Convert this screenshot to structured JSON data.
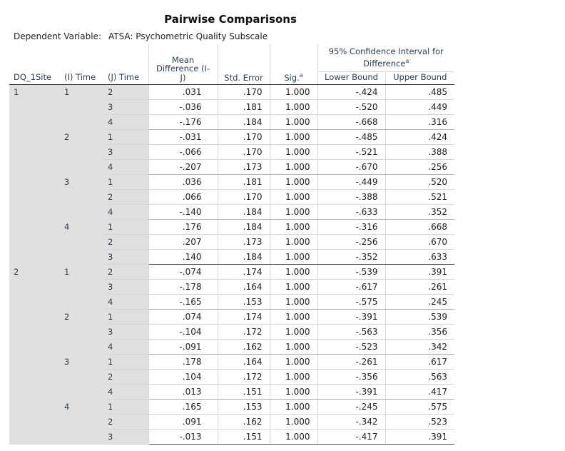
{
  "title": "Pairwise Comparisons",
  "dependent_variable": {
    "label": "Dependent Variable:",
    "value": "ATSA: Psychometric Quality Subscale"
  },
  "columns": {
    "site": "DQ_1Site",
    "i_time": "(I) Time",
    "j_time": "(J) Time",
    "mean_diff_line1": "Mean",
    "mean_diff_line2": "Difference (I-",
    "mean_diff_line3": "J)",
    "std_error": "Std. Error",
    "sig": "Sig.",
    "sig_footnote": "a",
    "ci_line1": "95% Confidence Interval for",
    "ci_line2": "Difference",
    "ci_footnote": "a",
    "lower": "Lower Bound",
    "upper": "Upper Bound"
  },
  "sites": [
    {
      "site": "1",
      "groups": [
        {
          "i": "1",
          "rows": [
            {
              "j": "2",
              "md": ".031",
              "se": ".170",
              "sig": "1.000",
              "lb": "-.424",
              "ub": ".485"
            },
            {
              "j": "3",
              "md": "-.036",
              "se": ".181",
              "sig": "1.000",
              "lb": "-.520",
              "ub": ".449"
            },
            {
              "j": "4",
              "md": "-.176",
              "se": ".184",
              "sig": "1.000",
              "lb": "-.668",
              "ub": ".316"
            }
          ]
        },
        {
          "i": "2",
          "rows": [
            {
              "j": "1",
              "md": "-.031",
              "se": ".170",
              "sig": "1.000",
              "lb": "-.485",
              "ub": ".424"
            },
            {
              "j": "3",
              "md": "-.066",
              "se": ".170",
              "sig": "1.000",
              "lb": "-.521",
              "ub": ".388"
            },
            {
              "j": "4",
              "md": "-.207",
              "se": ".173",
              "sig": "1.000",
              "lb": "-.670",
              "ub": ".256"
            }
          ]
        },
        {
          "i": "3",
          "rows": [
            {
              "j": "1",
              "md": ".036",
              "se": ".181",
              "sig": "1.000",
              "lb": "-.449",
              "ub": ".520"
            },
            {
              "j": "2",
              "md": ".066",
              "se": ".170",
              "sig": "1.000",
              "lb": "-.388",
              "ub": ".521"
            },
            {
              "j": "4",
              "md": "-.140",
              "se": ".184",
              "sig": "1.000",
              "lb": "-.633",
              "ub": ".352"
            }
          ]
        },
        {
          "i": "4",
          "rows": [
            {
              "j": "1",
              "md": ".176",
              "se": ".184",
              "sig": "1.000",
              "lb": "-.316",
              "ub": ".668"
            },
            {
              "j": "2",
              "md": ".207",
              "se": ".173",
              "sig": "1.000",
              "lb": "-.256",
              "ub": ".670"
            },
            {
              "j": "3",
              "md": ".140",
              "se": ".184",
              "sig": "1.000",
              "lb": "-.352",
              "ub": ".633"
            }
          ]
        }
      ]
    },
    {
      "site": "2",
      "groups": [
        {
          "i": "1",
          "rows": [
            {
              "j": "2",
              "md": "-.074",
              "se": ".174",
              "sig": "1.000",
              "lb": "-.539",
              "ub": ".391"
            },
            {
              "j": "3",
              "md": "-.178",
              "se": ".164",
              "sig": "1.000",
              "lb": "-.617",
              "ub": ".261"
            },
            {
              "j": "4",
              "md": "-.165",
              "se": ".153",
              "sig": "1.000",
              "lb": "-.575",
              "ub": ".245"
            }
          ]
        },
        {
          "i": "2",
          "rows": [
            {
              "j": "1",
              "md": ".074",
              "se": ".174",
              "sig": "1.000",
              "lb": "-.391",
              "ub": ".539"
            },
            {
              "j": "3",
              "md": "-.104",
              "se": ".172",
              "sig": "1.000",
              "lb": "-.563",
              "ub": ".356"
            },
            {
              "j": "4",
              "md": "-.091",
              "se": ".162",
              "sig": "1.000",
              "lb": "-.523",
              "ub": ".342"
            }
          ]
        },
        {
          "i": "3",
          "rows": [
            {
              "j": "1",
              "md": ".178",
              "se": ".164",
              "sig": "1.000",
              "lb": "-.261",
              "ub": ".617"
            },
            {
              "j": "2",
              "md": ".104",
              "se": ".172",
              "sig": "1.000",
              "lb": "-.356",
              "ub": ".563"
            },
            {
              "j": "4",
              "md": ".013",
              "se": ".151",
              "sig": "1.000",
              "lb": "-.391",
              "ub": ".417"
            }
          ]
        },
        {
          "i": "4",
          "rows": [
            {
              "j": "1",
              "md": ".165",
              "se": ".153",
              "sig": "1.000",
              "lb": "-.245",
              "ub": ".575"
            },
            {
              "j": "2",
              "md": ".091",
              "se": ".162",
              "sig": "1.000",
              "lb": "-.342",
              "ub": ".523"
            },
            {
              "j": "3",
              "md": "-.013",
              "se": ".151",
              "sig": "1.000",
              "lb": "-.417",
              "ub": ".391"
            }
          ]
        }
      ]
    }
  ]
}
